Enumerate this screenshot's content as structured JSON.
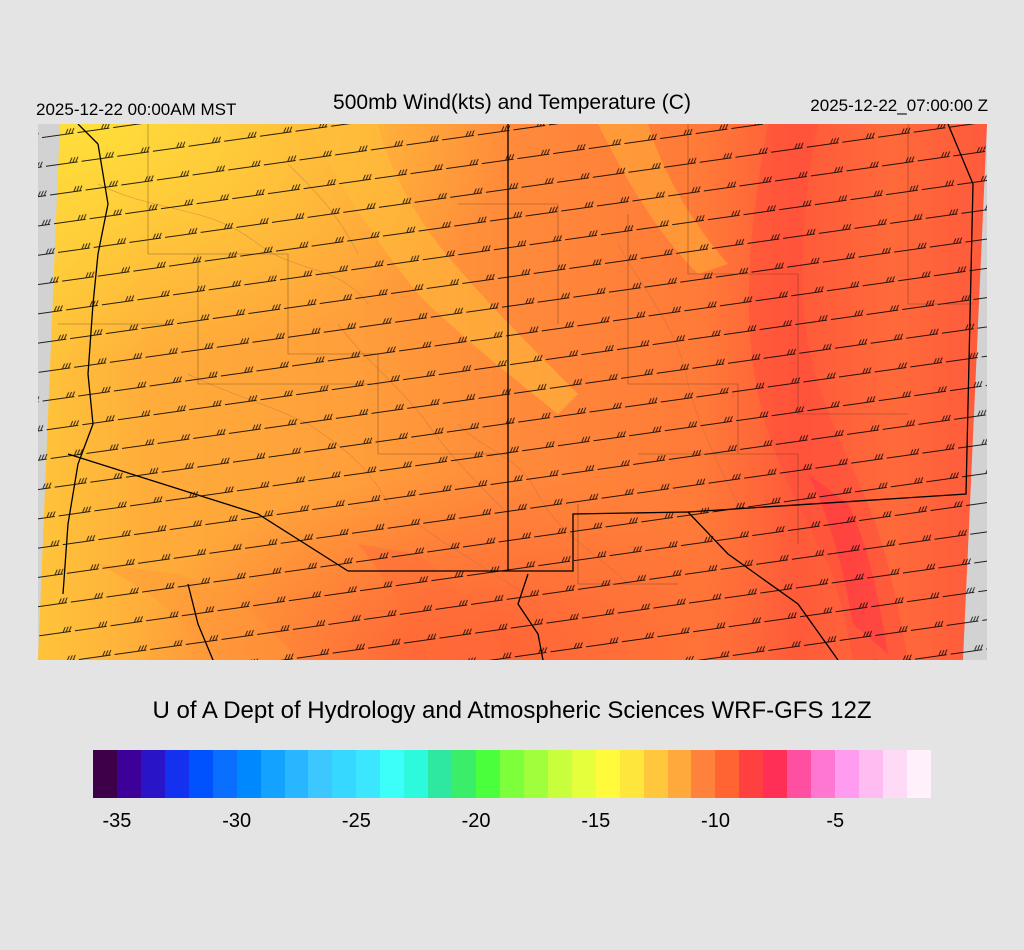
{
  "header": {
    "local_time": "2025-12-22 00:00AM MST",
    "title": "500mb Wind(kts) and Temperature (C)",
    "valid_time": "2025-12-22_07:00:00 Z"
  },
  "footer": {
    "credit": "U of A Dept of Hydrology and Atmospheric Sciences WRF-GFS 12Z"
  },
  "colorbar": {
    "colors": [
      "#3d0049",
      "#3d0099",
      "#2a14c8",
      "#1431f0",
      "#0052ff",
      "#0a6eff",
      "#0088ff",
      "#13a2ff",
      "#27b6ff",
      "#3cc8ff",
      "#36d8ff",
      "#3ce6ff",
      "#3cfffa",
      "#2dfadc",
      "#2ee8a2",
      "#3aee6a",
      "#4aff3c",
      "#7eff3c",
      "#a0ff3c",
      "#c8ff3c",
      "#e6ff3c",
      "#fffa3c",
      "#ffe63c",
      "#ffc83c",
      "#ffa83c",
      "#ff823c",
      "#ff6432",
      "#ff4040",
      "#ff2f55",
      "#ff4fa0",
      "#ff77d0",
      "#ff9cf0",
      "#ffbcf0",
      "#ffdaf7",
      "#fff0fc"
    ],
    "min": -36,
    "max": -1,
    "tick_labels": [
      {
        "label": "-35",
        "value": -35
      },
      {
        "label": "-30",
        "value": -30
      },
      {
        "label": "-25",
        "value": -25
      },
      {
        "label": "-20",
        "value": -20
      },
      {
        "label": "-15",
        "value": -15
      },
      {
        "label": "-10",
        "value": -10
      },
      {
        "label": "-5",
        "value": -5
      }
    ]
  }
}
